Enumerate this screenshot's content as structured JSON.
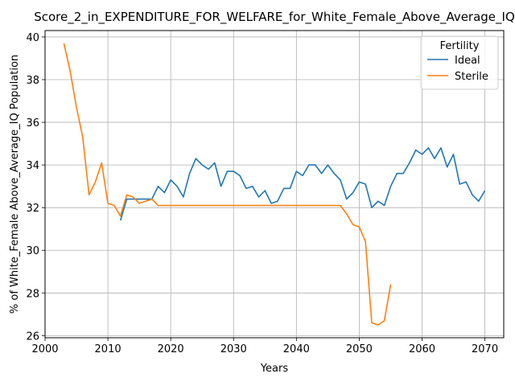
{
  "chart_data": {
    "type": "line",
    "title": "Score_2_in_EXPENDITURE_FOR_WELFARE_for_White_Female_Above_Average_IQ",
    "xlabel": "Years",
    "ylabel": "% of White_Female Above_Average_IQ Population",
    "xlim": [
      2000,
      2073
    ],
    "ylim": [
      25.9,
      40.3
    ],
    "xticks": [
      2000,
      2010,
      2020,
      2030,
      2040,
      2050,
      2060,
      2070
    ],
    "yticks": [
      26,
      28,
      30,
      32,
      34,
      36,
      38,
      40
    ],
    "grid": true,
    "legend": {
      "title": "Fertility",
      "placement": "top-right",
      "entries": [
        "Ideal",
        "Sterile"
      ]
    },
    "series": [
      {
        "name": "Ideal",
        "color": "#1f77b4",
        "x": [
          2012,
          2013,
          2014,
          2015,
          2016,
          2017,
          2018,
          2019,
          2020,
          2021,
          2022,
          2023,
          2024,
          2025,
          2026,
          2027,
          2028,
          2029,
          2030,
          2031,
          2032,
          2033,
          2034,
          2035,
          2036,
          2037,
          2038,
          2039,
          2040,
          2041,
          2042,
          2043,
          2044,
          2045,
          2046,
          2047,
          2048,
          2049,
          2050,
          2051,
          2052,
          2053,
          2054,
          2055,
          2056,
          2057,
          2058,
          2059,
          2060,
          2061,
          2062,
          2063,
          2064,
          2065,
          2066,
          2067,
          2068,
          2069,
          2070
        ],
        "y": [
          31.4,
          32.4,
          32.4,
          32.4,
          32.4,
          32.4,
          33.0,
          32.7,
          33.3,
          33.0,
          32.5,
          33.6,
          34.3,
          34.0,
          33.8,
          34.1,
          33.0,
          33.7,
          33.7,
          33.5,
          32.9,
          33.0,
          32.5,
          32.8,
          32.2,
          32.3,
          32.9,
          32.9,
          33.7,
          33.5,
          34.0,
          34.0,
          33.6,
          34.0,
          33.6,
          33.3,
          32.4,
          32.7,
          33.2,
          33.1,
          32.0,
          32.3,
          32.1,
          33.0,
          33.6,
          33.6,
          34.1,
          34.7,
          34.5,
          34.8,
          34.3,
          34.8,
          33.9,
          34.5,
          33.1,
          33.2,
          32.6,
          32.3,
          32.8
        ]
      },
      {
        "name": "Sterile",
        "color": "#ff7f0e",
        "x": [
          2003,
          2004,
          2005,
          2006,
          2007,
          2008,
          2009,
          2010,
          2011,
          2012,
          2013,
          2014,
          2015,
          2016,
          2017,
          2018,
          2019,
          2020,
          2021,
          2022,
          2023,
          2024,
          2025,
          2026,
          2027,
          2028,
          2029,
          2030,
          2031,
          2032,
          2033,
          2034,
          2035,
          2036,
          2037,
          2038,
          2039,
          2040,
          2041,
          2042,
          2043,
          2044,
          2045,
          2046,
          2047,
          2048,
          2049,
          2050,
          2051,
          2052,
          2053,
          2054,
          2055
        ],
        "y": [
          39.7,
          38.4,
          36.7,
          35.3,
          32.6,
          33.2,
          34.1,
          32.2,
          32.1,
          31.6,
          32.6,
          32.5,
          32.2,
          32.3,
          32.4,
          32.1,
          32.1,
          32.1,
          32.1,
          32.1,
          32.1,
          32.1,
          32.1,
          32.1,
          32.1,
          32.1,
          32.1,
          32.1,
          32.1,
          32.1,
          32.1,
          32.1,
          32.1,
          32.1,
          32.1,
          32.1,
          32.1,
          32.1,
          32.1,
          32.1,
          32.1,
          32.1,
          32.1,
          32.1,
          32.1,
          31.7,
          31.2,
          31.1,
          30.4,
          26.6,
          26.5,
          26.7,
          28.4
        ]
      }
    ]
  }
}
